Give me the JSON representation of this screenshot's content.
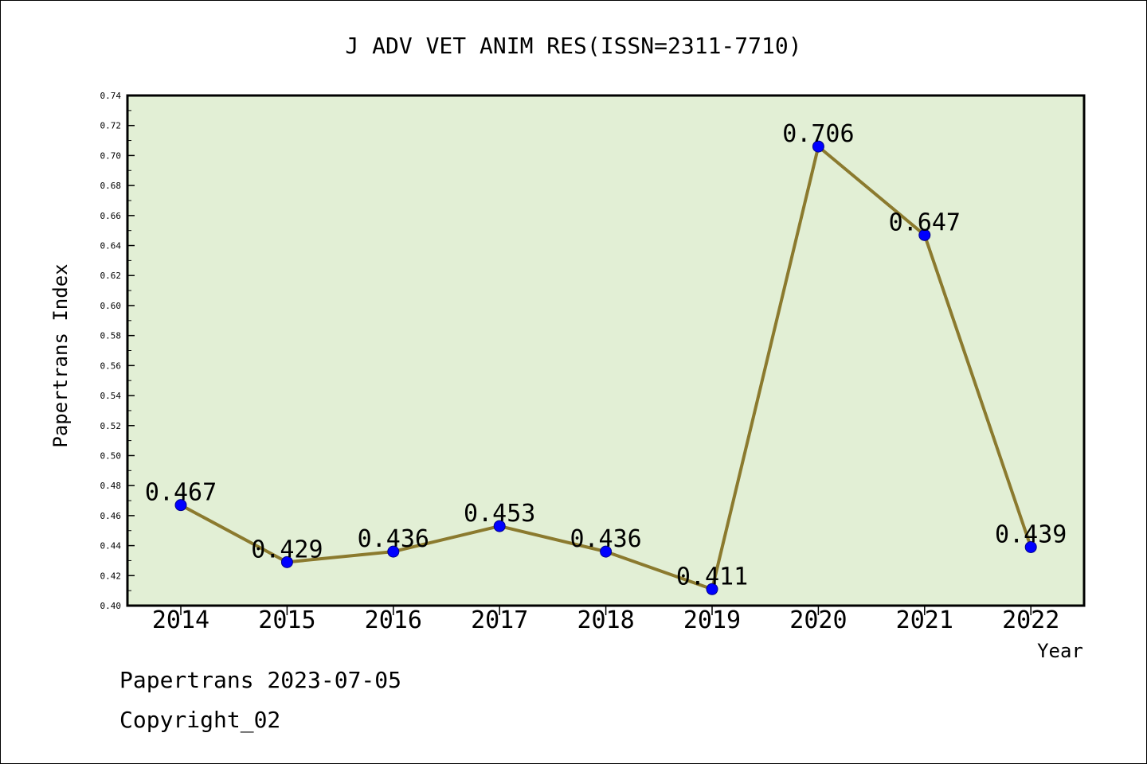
{
  "chart_data": {
    "type": "line",
    "title": "J ADV VET ANIM RES(ISSN=2311-7710)",
    "xlabel": "Year",
    "ylabel": "Papertrans Index",
    "categories": [
      "2014",
      "2015",
      "2016",
      "2017",
      "2018",
      "2019",
      "2020",
      "2021",
      "2022"
    ],
    "values": [
      0.467,
      0.429,
      0.436,
      0.453,
      0.436,
      0.411,
      0.706,
      0.647,
      0.439
    ],
    "value_labels": [
      "0.467",
      "0.429",
      "0.436",
      "0.453",
      "0.436",
      "0.411",
      "0.706",
      "0.647",
      "0.439"
    ],
    "ylim": [
      0.4,
      0.74
    ],
    "yticks": [
      "0.40",
      "0.42",
      "0.44",
      "0.46",
      "0.48",
      "0.50",
      "0.52",
      "0.54",
      "0.56",
      "0.58",
      "0.60",
      "0.62",
      "0.64",
      "0.66",
      "0.68",
      "0.70",
      "0.72",
      "0.74"
    ],
    "grid": false,
    "colors": {
      "plot_background": "#e2efd5",
      "line": "#8b7a2e",
      "marker": "#0000ff"
    }
  },
  "footer": {
    "line1": "Papertrans 2023-07-05",
    "line2": "Copyright_02"
  }
}
